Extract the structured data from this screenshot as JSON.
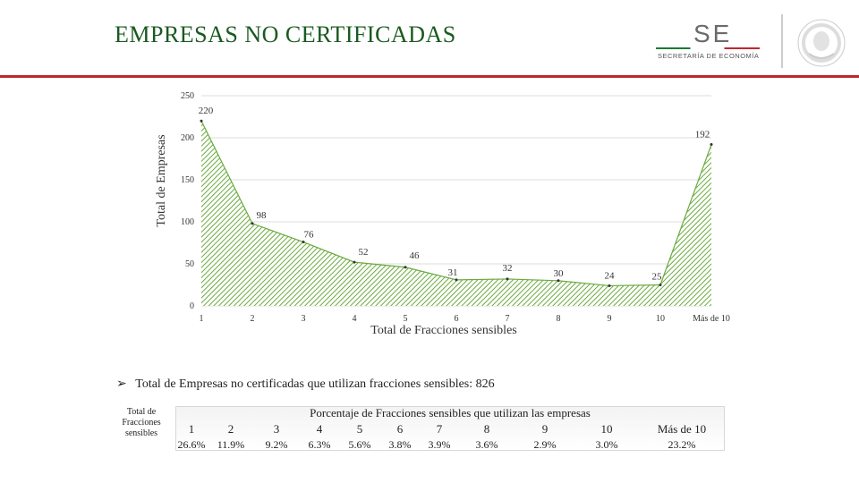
{
  "slide": {
    "title": "EMPRESAS NO CERTIFICADAS",
    "logo_text": "SE",
    "logo_subtitle": "SECRETARÍA DE ECONOMÍA",
    "accent_color": "#c0272d",
    "title_color": "#1a5a20"
  },
  "chart_data": {
    "type": "area",
    "title": "",
    "xlabel": "Total de Fracciones sensibles",
    "ylabel": "Total de Empresas",
    "categories": [
      "1",
      "2",
      "3",
      "4",
      "5",
      "6",
      "7",
      "8",
      "9",
      "10",
      "Más de 10"
    ],
    "values": [
      220,
      98,
      76,
      52,
      46,
      31,
      32,
      30,
      24,
      25,
      192
    ],
    "yticks": [
      "0",
      "50",
      "100",
      "150",
      "200",
      "250"
    ],
    "ylim": [
      0,
      250
    ],
    "grid": true,
    "fill": "green hatched",
    "series_color": "#6aab3e"
  },
  "summary": {
    "text": "Total de Empresas no certificadas que utilizan fracciones sensibles: 826"
  },
  "table": {
    "row_label": "Total de Fracciones sensibles",
    "caption": "Porcentaje de Fracciones sensibles que utilizan las empresas",
    "headers": [
      "1",
      "2",
      "3",
      "4",
      "5",
      "6",
      "7",
      "8",
      "9",
      "10",
      "Más de 10"
    ],
    "values": [
      "26.6%",
      "11.9%",
      "9.2%",
      "6.3%",
      "5.6%",
      "3.8%",
      "3.9%",
      "3.6%",
      "2.9%",
      "3.0%",
      "23.2%"
    ]
  }
}
